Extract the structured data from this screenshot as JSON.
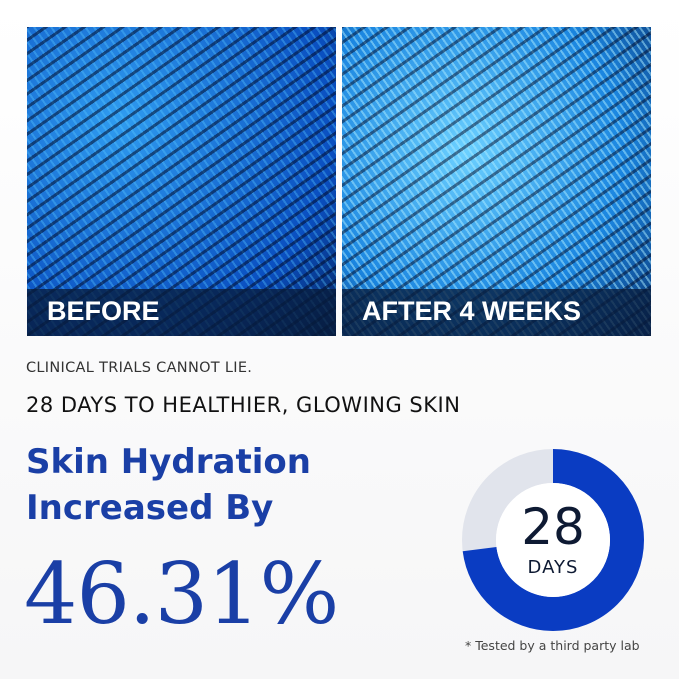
{
  "panels": [
    {
      "label": "BEFORE"
    },
    {
      "label": "AFTER 4 WEEKS"
    }
  ],
  "tagline": "CLINICAL TRIALS CANNOT LIE.",
  "subhead": "28 DAYS TO HEALTHIER, GLOWING SKIN",
  "headline": {
    "line1": "Skin Hydration",
    "line2": "Increased By",
    "value": "46.31%"
  },
  "donut": {
    "number": "28",
    "unit": "DAYS",
    "fill_fraction": 0.73,
    "colors": {
      "fill": "#0a3cc2",
      "track": "#e1e4ec"
    }
  },
  "footnote": "* Tested by a third party lab"
}
